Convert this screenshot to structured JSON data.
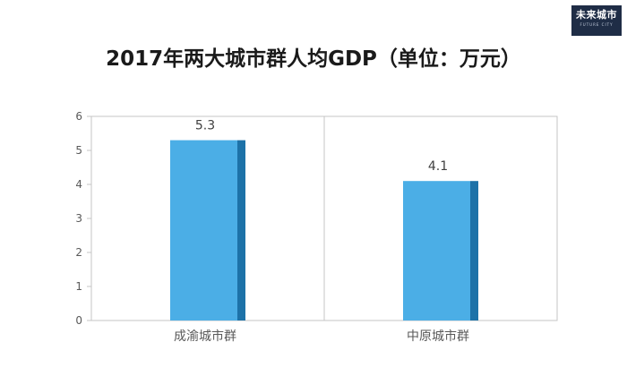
{
  "logo": {
    "main": "未来城市",
    "sub": "FUTURE CITY"
  },
  "chart_data": {
    "type": "bar",
    "title": "2017年两大城市群人均GDP（单位：万元）",
    "xlabel": "",
    "ylabel": "",
    "categories": [
      "成渝城市群",
      "中原城市群"
    ],
    "values": [
      5.3,
      4.1
    ],
    "data_labels": [
      "5.3",
      "4.1"
    ],
    "ylim": [
      0,
      6
    ],
    "yticks": [
      "0",
      "1",
      "2",
      "3",
      "4",
      "5",
      "6"
    ],
    "grid": true,
    "legend": "none",
    "colors": {
      "bar": "#4baee6",
      "bar_edge": "#1d72a8",
      "axis": "#c6c6c6",
      "text": "#595959",
      "label": "#404040"
    }
  }
}
